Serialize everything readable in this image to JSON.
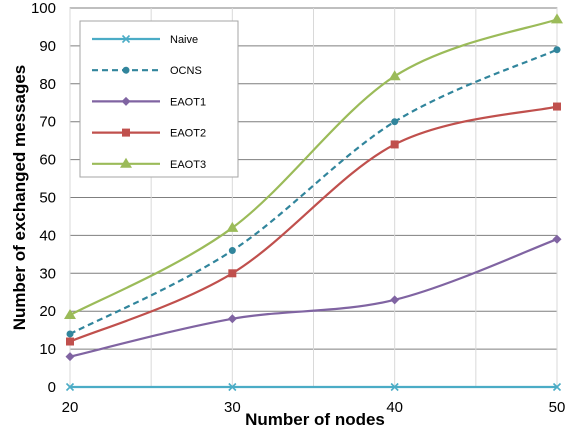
{
  "chart_data": {
    "type": "line",
    "xlabel": "Number of nodes",
    "ylabel": "Number of exchanged messages",
    "x": [
      20,
      30,
      40,
      50
    ],
    "xlim": [
      20,
      50
    ],
    "ylim": [
      0,
      100
    ],
    "x_ticks": [
      20,
      30,
      40,
      50
    ],
    "y_ticks": [
      0,
      10,
      20,
      30,
      40,
      50,
      60,
      70,
      80,
      90,
      100
    ],
    "grid": true,
    "legend_position": "top-left",
    "series": [
      {
        "name": "Naive",
        "values": [
          0,
          0,
          0,
          0
        ],
        "color": "#4BACC6",
        "marker": "x",
        "dash": false
      },
      {
        "name": "OCNS",
        "values": [
          14,
          36,
          70,
          89
        ],
        "color": "#31859C",
        "marker": "circle",
        "dash": true
      },
      {
        "name": "EAOT1",
        "values": [
          8,
          18,
          23,
          39
        ],
        "color": "#8064A2",
        "marker": "diamond",
        "dash": false
      },
      {
        "name": "EAOT2",
        "values": [
          12,
          30,
          64,
          74
        ],
        "color": "#C0504D",
        "marker": "square",
        "dash": false
      },
      {
        "name": "EAOT3",
        "values": [
          19,
          42,
          82,
          97
        ],
        "color": "#9BBB59",
        "marker": "triangle",
        "dash": false
      }
    ]
  }
}
